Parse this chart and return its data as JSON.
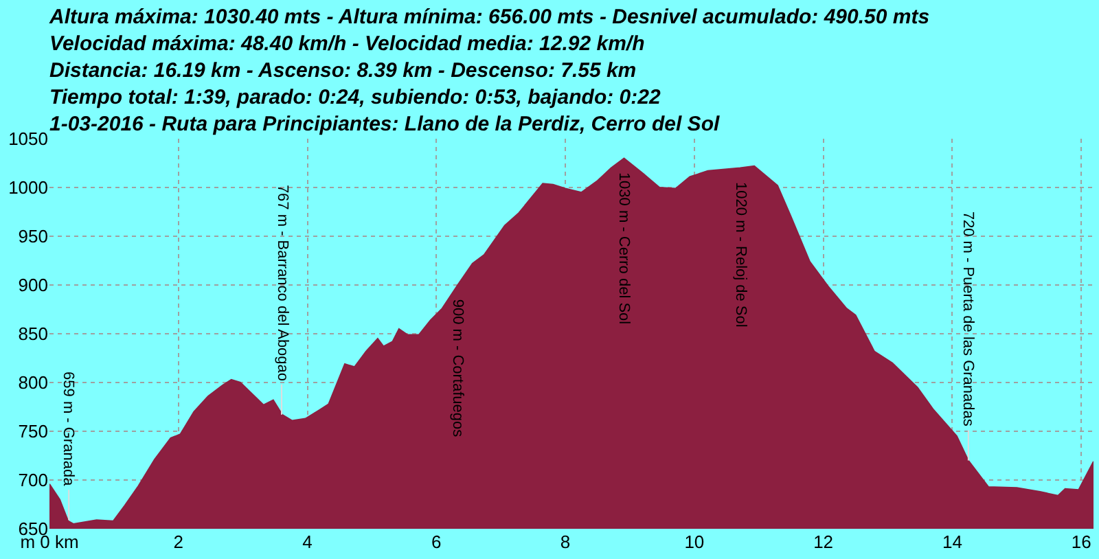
{
  "chart_data": {
    "type": "area",
    "title": "Altura máxima: 1030.40 mts - Altura mínima: 656.00 mts - Desnivel acumulado: 490.50 mts\nVelocidad máxima: 48.40 km/h - Velocidad media: 12.92 km/h\nDistancia: 16.19 km - Ascenso: 8.39 km - Descenso: 7.55 km\nTiempo total: 1:39, parado: 0:24, subiendo: 0:53, bajando: 0:22\n1-03-2016 - Ruta para Principiantes: Llano de la Perdiz, Cerro del Sol",
    "x": [
      0,
      0.16,
      0.29,
      0.37,
      0.73,
      0.99,
      1.17,
      1.38,
      1.63,
      1.88,
      2.03,
      2.24,
      2.46,
      2.68,
      2.82,
      2.96,
      3.32,
      3.47,
      3.61,
      3.76,
      3.97,
      4.19,
      4.33,
      4.58,
      4.73,
      4.91,
      5.09,
      5.18,
      5.32,
      5.42,
      5.55,
      5.73,
      5.91,
      6.09,
      6.33,
      6.56,
      6.74,
      7.06,
      7.28,
      7.65,
      7.81,
      8.0,
      8.25,
      8.5,
      8.71,
      8.91,
      9.21,
      9.46,
      9.71,
      9.93,
      10.21,
      10.71,
      10.93,
      11.29,
      11.5,
      11.79,
      12.07,
      12.36,
      12.5,
      12.79,
      13.07,
      13.46,
      13.71,
      14.07,
      14.25,
      14.56,
      15.0,
      15.36,
      15.64,
      15.75,
      15.96,
      16.19
    ],
    "series": [
      {
        "color": "#8c1f40",
        "values": [
          696,
          680,
          658,
          655,
          659,
          658,
          674,
          694,
          721,
          743,
          747,
          770,
          786,
          797,
          803,
          800,
          777,
          782,
          767,
          761,
          763,
          772,
          778,
          819,
          816,
          832,
          845,
          837,
          842,
          855,
          849,
          849,
          864,
          876,
          900,
          922,
          931,
          961,
          974,
          1004,
          1003,
          999,
          995,
          1007,
          1020,
          1030,
          1014,
          1000,
          999,
          1011,
          1017,
          1020,
          1022,
          1002,
          970,
          924,
          899,
          876,
          869,
          832,
          820,
          795,
          772,
          745,
          720,
          693,
          692,
          688,
          684,
          691,
          690,
          719
        ]
      }
    ],
    "annotations": [
      {
        "text": "659 m - Granada",
        "x": 0.3,
        "y": 659
      },
      {
        "text": "767 m - Barranco del Abogao",
        "x": 3.6,
        "y": 767
      },
      {
        "text": "900 m - Cortafuegos",
        "x": 6.33,
        "y": 900
      },
      {
        "text": "1030 m - Cerro del Sol",
        "x": 8.91,
        "y": 1030
      },
      {
        "text": "1020 m - Reloj de Sol",
        "x": 10.71,
        "y": 1020
      },
      {
        "text": "720 m - Puerta de las Granadas",
        "x": 14.25,
        "y": 720
      }
    ],
    "xlim": [
      0,
      16.19
    ],
    "xticks": [
      {
        "value": 0,
        "label": "m 0 km"
      },
      2,
      4,
      6,
      8,
      10,
      12,
      14,
      16
    ],
    "ylim": [
      650,
      1050
    ],
    "yticks": [
      650,
      700,
      750,
      800,
      850,
      900,
      950,
      1000,
      1050
    ],
    "grid": true
  }
}
